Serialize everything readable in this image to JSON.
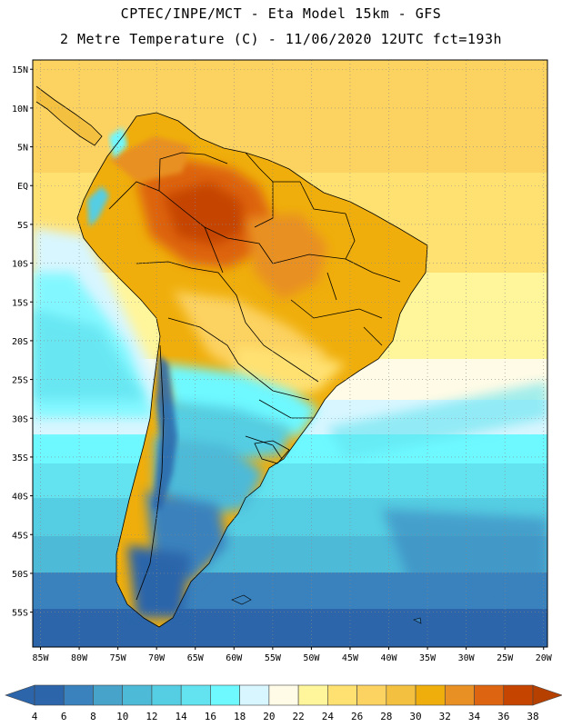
{
  "header": {
    "title_line1": "CPTEC/INPE/MCT  -  Eta Model 15km - GFS",
    "title_line2": "2 Metre Temperature (C) - 11/06/2020 12UTC fct=193h"
  },
  "map": {
    "lat_labels": [
      {
        "lat": 15,
        "label": "15N"
      },
      {
        "lat": 10,
        "label": "10N"
      },
      {
        "lat": 5,
        "label": "5N"
      },
      {
        "lat": 0,
        "label": "EQ"
      },
      {
        "lat": -5,
        "label": "5S"
      },
      {
        "lat": -10,
        "label": "10S"
      },
      {
        "lat": -15,
        "label": "15S"
      },
      {
        "lat": -20,
        "label": "20S"
      },
      {
        "lat": -25,
        "label": "25S"
      },
      {
        "lat": -30,
        "label": "30S"
      },
      {
        "lat": -35,
        "label": "35S"
      },
      {
        "lat": -40,
        "label": "40S"
      },
      {
        "lat": -45,
        "label": "45S"
      },
      {
        "lat": -50,
        "label": "50S"
      },
      {
        "lat": -55,
        "label": "55S"
      }
    ],
    "lon_labels": [
      {
        "lon": -85,
        "label": "85W"
      },
      {
        "lon": -80,
        "label": "80W"
      },
      {
        "lon": -75,
        "label": "75W"
      },
      {
        "lon": -70,
        "label": "70W"
      },
      {
        "lon": -65,
        "label": "65W"
      },
      {
        "lon": -60,
        "label": "60W"
      },
      {
        "lon": -55,
        "label": "55W"
      },
      {
        "lon": -50,
        "label": "50W"
      },
      {
        "lon": -45,
        "label": "45W"
      },
      {
        "lon": -40,
        "label": "40W"
      },
      {
        "lon": -35,
        "label": "35W"
      },
      {
        "lon": -30,
        "label": "30W"
      },
      {
        "lon": -25,
        "label": "25W"
      },
      {
        "lon": -20,
        "label": "20W"
      }
    ]
  },
  "legend": {
    "colors": [
      "#2c65aa",
      "#3a82bd",
      "#48a3cb",
      "#4dbad8",
      "#55cde2",
      "#62e3ef",
      "#6ef8ff",
      "#d8f6ff",
      "#fffbe6",
      "#fff59b",
      "#ffe172",
      "#fcd261",
      "#f3c13f",
      "#efae0b",
      "#e89024",
      "#dd6410",
      "#c54500",
      "#b54000"
    ],
    "labels": [
      "4",
      "6",
      "8",
      "10",
      "12",
      "14",
      "16",
      "18",
      "20",
      "22",
      "24",
      "26",
      "28",
      "30",
      "32",
      "34",
      "36",
      "38"
    ],
    "under_color": "#2c65aa",
    "over_color": "#b54000"
  }
}
